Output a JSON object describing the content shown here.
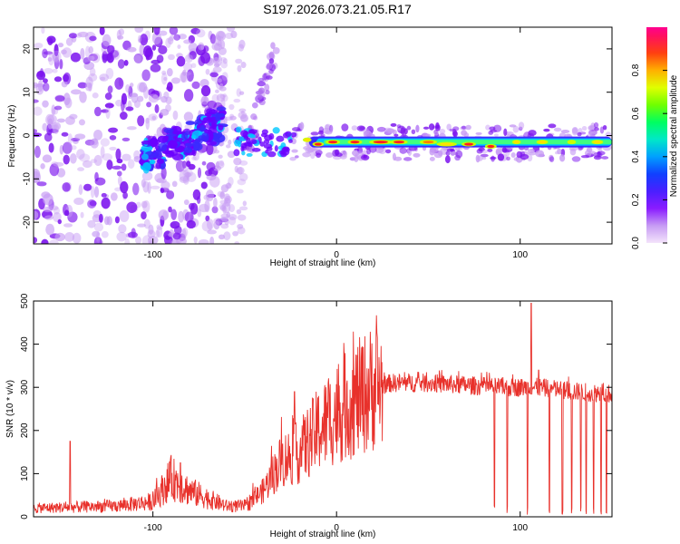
{
  "title": "S197.2026.073.21.05.R17",
  "chart_data": [
    {
      "type": "heatmap",
      "name": "spectrogram",
      "xlabel": "Height of straight line (km)",
      "ylabel": "Frequency (Hz)",
      "xlim": [
        -165,
        150
      ],
      "ylim": [
        -25,
        25
      ],
      "xticks": [
        -100,
        0,
        100
      ],
      "xtick_labels": [
        "-100",
        "0",
        "100"
      ],
      "yticks": [
        -20,
        -10,
        0,
        10,
        20
      ],
      "ytick_labels": [
        "-20",
        "-10",
        "0",
        "10",
        "20"
      ],
      "colorbar": {
        "label": "Normalized spectral amplitude",
        "range": [
          0,
          1
        ],
        "ticks": [
          0.0,
          0.2,
          0.4,
          0.6,
          0.8
        ],
        "tick_labels": [
          "0.0",
          "0.2",
          "0.4",
          "0.6",
          "0.8"
        ],
        "colormap": [
          "#f4e4fb",
          "#b47cf0",
          "#7a00ff",
          "#3a2bff",
          "#0050ff",
          "#00c8ff",
          "#00ff90",
          "#40ff00",
          "#c8ff00",
          "#ffe000",
          "#ff8000",
          "#ff2020",
          "#ff0090"
        ]
      },
      "features": {
        "ridge_start_x": -105,
        "ridge_start_y": -5,
        "ridge_end_x": -62,
        "ridge_end_y": 3,
        "band_x_range": [
          -25,
          150
        ],
        "band_center_frequency": -1.5,
        "peak_amplitude_x": [
          -10,
          10,
          30,
          60,
          85
        ]
      }
    },
    {
      "type": "line",
      "name": "snr",
      "xlabel": "Height of straight line (km)",
      "ylabel": "SNR (10 * v/v)",
      "xlim": [
        -165,
        150
      ],
      "ylim": [
        0,
        500
      ],
      "xticks": [
        -100,
        0,
        100
      ],
      "xtick_labels": [
        "-100",
        "0",
        "100"
      ],
      "yticks": [
        0,
        100,
        200,
        300,
        400,
        500
      ],
      "ytick_labels": [
        "0",
        "100",
        "200",
        "300",
        "400",
        "500"
      ],
      "line_color": "#e8312b",
      "envelope_x": [
        -165,
        -120,
        -100,
        -90,
        -80,
        -60,
        -50,
        -40,
        -30,
        -20,
        -10,
        0,
        10,
        20,
        30,
        50,
        70,
        90,
        110,
        130,
        150
      ],
      "envelope_y": [
        20,
        25,
        35,
        90,
        60,
        25,
        25,
        60,
        130,
        150,
        200,
        240,
        270,
        300,
        310,
        310,
        305,
        300,
        300,
        290,
        285
      ],
      "spikes": [
        {
          "x": -145,
          "y": 175
        },
        {
          "x": -85,
          "y": 125
        },
        {
          "x": -23,
          "y": 290
        },
        {
          "x": 106,
          "y": 495
        },
        {
          "x": 110,
          "y": 340
        }
      ],
      "dropouts_x": [
        86,
        93,
        104,
        116,
        123,
        128,
        133,
        136,
        140,
        144,
        147
      ]
    }
  ]
}
